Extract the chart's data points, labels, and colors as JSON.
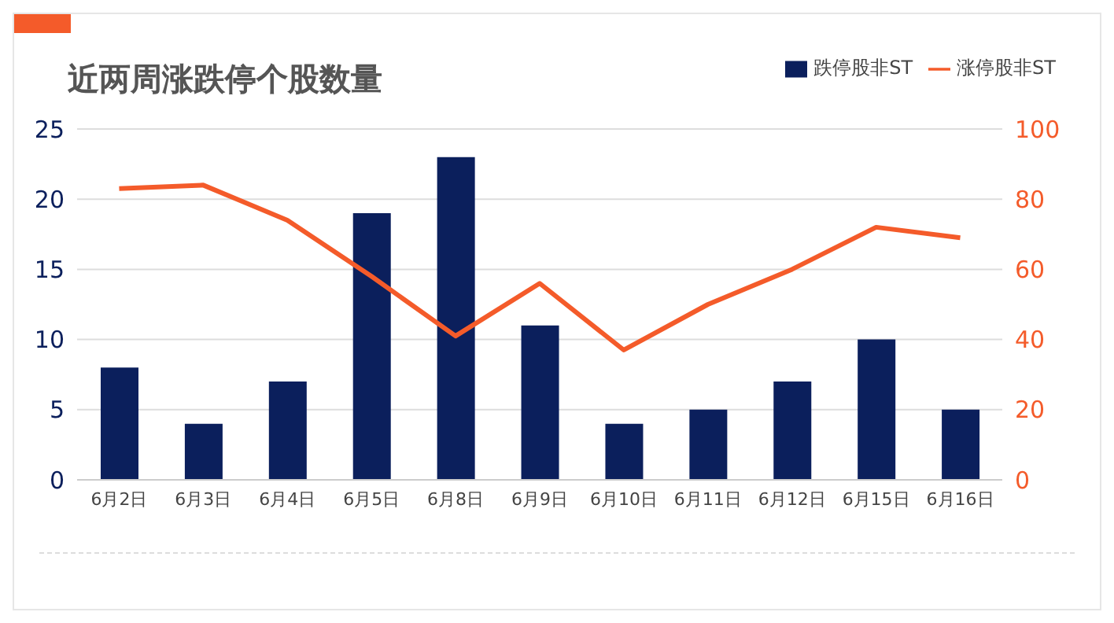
{
  "chart_data": {
    "type": "bar",
    "title": "近两周涨跌停个股数量",
    "categories": [
      "6月2日",
      "6月3日",
      "6月4日",
      "6月5日",
      "6月8日",
      "6月9日",
      "6月10日",
      "6月11日",
      "6月12日",
      "6月15日",
      "6月16日"
    ],
    "series": [
      {
        "name": "跌停股非ST",
        "color": "#0b1f5c",
        "values": [
          8,
          4,
          7,
          19,
          23,
          11,
          4,
          5,
          7,
          10,
          5
        ]
      },
      {
        "name": "涨停股非ST",
        "type": "line",
        "axis": "y2",
        "color": "#f45b2a",
        "values": [
          83,
          84,
          74,
          58,
          41,
          56,
          37,
          50,
          60,
          72,
          69
        ]
      }
    ],
    "ylim": [
      0,
      25
    ],
    "yticks": [
      0,
      5,
      10,
      15,
      20,
      25
    ],
    "y2lim": [
      0,
      100
    ],
    "y2ticks": [
      0,
      20,
      40,
      60,
      80,
      100
    ],
    "grid": "y",
    "legend": "top right",
    "marker": "none"
  }
}
